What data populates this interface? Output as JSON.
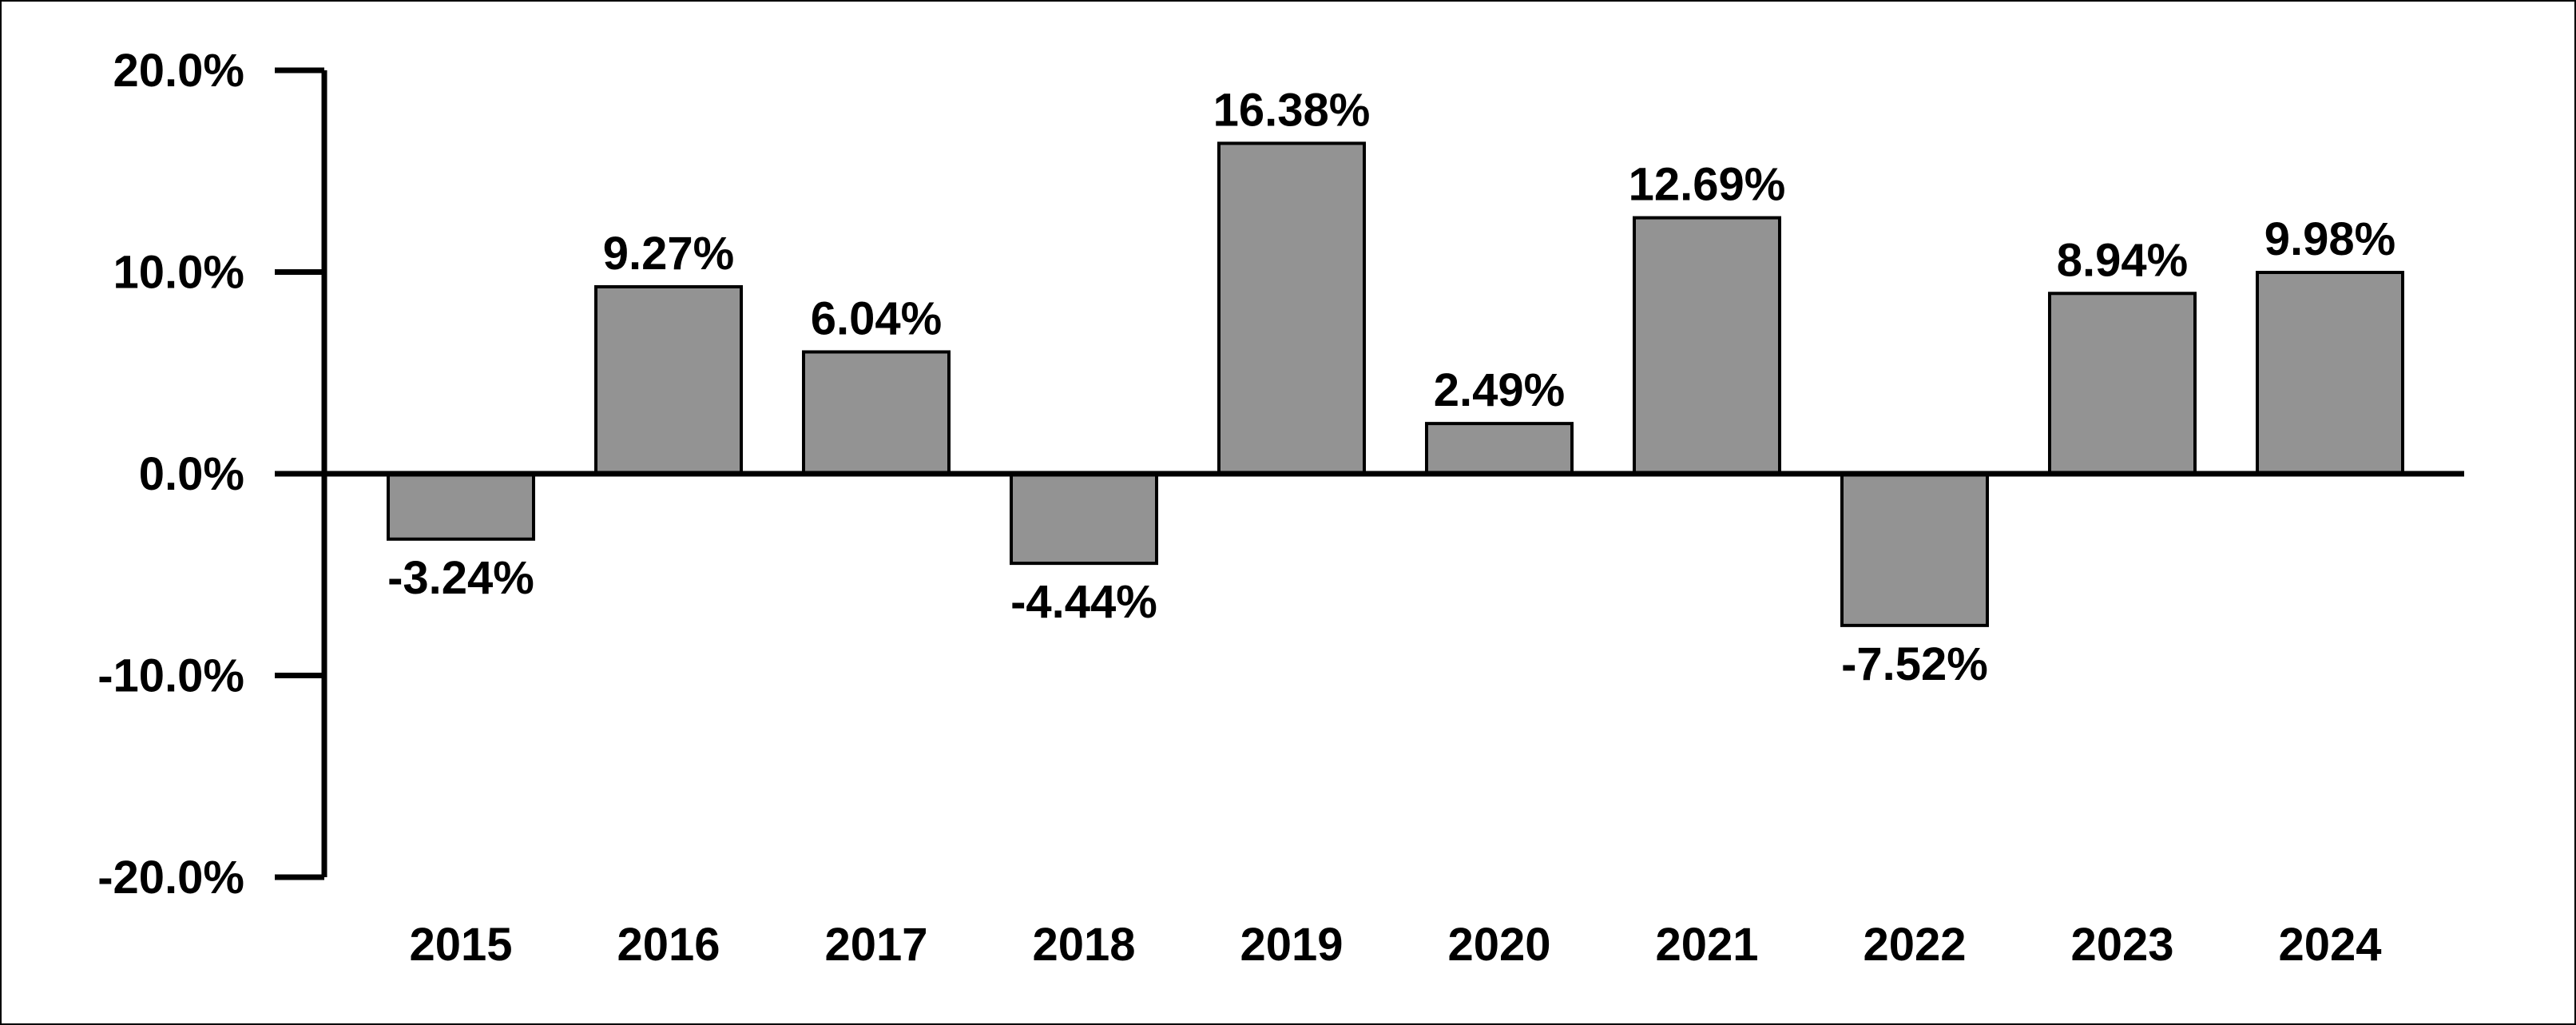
{
  "chart_data": {
    "type": "bar",
    "title": "",
    "xlabel": "",
    "ylabel": "",
    "categories": [
      "2015",
      "2016",
      "2017",
      "2018",
      "2019",
      "2020",
      "2021",
      "2022",
      "2023",
      "2024"
    ],
    "values": [
      -3.24,
      9.27,
      6.04,
      -4.44,
      16.38,
      2.49,
      12.69,
      -7.52,
      8.94,
      9.98
    ],
    "value_labels": [
      "-3.24%",
      "9.27%",
      "6.04%",
      "-4.44%",
      "16.38%",
      "2.49%",
      "12.69%",
      "-7.52%",
      "8.94%",
      "9.98%"
    ],
    "ylim": [
      -20,
      20
    ],
    "y_ticks": [
      20,
      10,
      0,
      -10,
      -20
    ],
    "y_tick_labels": [
      "20.0%",
      "10.0%",
      "0.0%",
      "-10.0%",
      "-20.0%"
    ],
    "grid": false,
    "legend": "none",
    "colors": {
      "bar_fill": "#939393",
      "bar_stroke": "#000000",
      "axis": "#000000",
      "text": "#000000",
      "background": "#ffffff"
    }
  }
}
